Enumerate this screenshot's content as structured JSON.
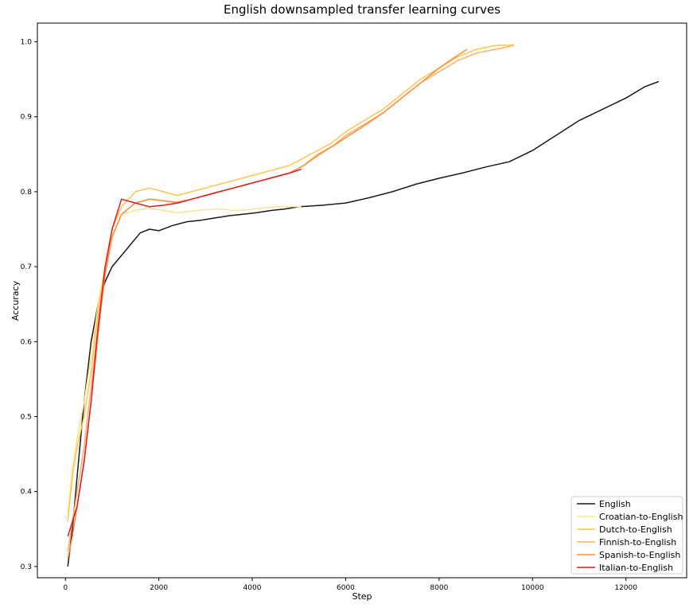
{
  "chart_data": {
    "type": "line",
    "title": "English downsampled transfer learning curves",
    "xlabel": "Step",
    "ylabel": "Accuracy",
    "xlim": [
      -600,
      13300
    ],
    "ylim": [
      0.285,
      1.025
    ],
    "xticks": [
      0,
      2000,
      4000,
      6000,
      8000,
      10000,
      12000
    ],
    "yticks": [
      0.3,
      0.4,
      0.5,
      0.6,
      0.7,
      0.8,
      0.9,
      1.0
    ],
    "xtick_labels": [
      "0",
      "2000",
      "4000",
      "6000",
      "8000",
      "10000",
      "12000"
    ],
    "ytick_labels": [
      "0.3",
      "0.4",
      "0.5",
      "0.6",
      "0.7",
      "0.8",
      "0.9",
      "1.0"
    ],
    "grid": false,
    "legend_position": "lower-right",
    "series": [
      {
        "name": "English",
        "color": "#1a1a1a",
        "x": [
          50,
          150,
          250,
          400,
          550,
          700,
          850,
          1000,
          1200,
          1400,
          1600,
          1800,
          2000,
          2300,
          2600,
          2900,
          3200,
          3500,
          3800,
          4100,
          4400,
          4700,
          5000,
          5500,
          6000,
          6500,
          7000,
          7500,
          8000,
          8500,
          9000,
          9500,
          10000,
          10500,
          11000,
          11500,
          12000,
          12400,
          12700
        ],
        "y": [
          0.3,
          0.35,
          0.42,
          0.52,
          0.6,
          0.65,
          0.68,
          0.7,
          0.715,
          0.73,
          0.745,
          0.75,
          0.748,
          0.755,
          0.76,
          0.762,
          0.765,
          0.768,
          0.77,
          0.772,
          0.775,
          0.777,
          0.78,
          0.782,
          0.785,
          0.792,
          0.8,
          0.81,
          0.818,
          0.825,
          0.833,
          0.84,
          0.855,
          0.875,
          0.895,
          0.91,
          0.925,
          0.94,
          0.947
        ]
      },
      {
        "name": "Croatian-to-English",
        "color": "#fee391",
        "x": [
          50,
          150,
          250,
          400,
          550,
          700,
          850,
          1000,
          1200,
          1500,
          1800,
          2100,
          2400,
          2700,
          3000,
          3300,
          3600,
          3900,
          4200,
          4500,
          4800,
          5050
        ],
        "y": [
          0.37,
          0.43,
          0.47,
          0.52,
          0.58,
          0.65,
          0.7,
          0.74,
          0.77,
          0.775,
          0.778,
          0.775,
          0.772,
          0.774,
          0.776,
          0.777,
          0.775,
          0.776,
          0.778,
          0.78,
          0.78,
          0.78
        ]
      },
      {
        "name": "Dutch-to-English",
        "color": "#fec44f",
        "x": [
          50,
          150,
          250,
          400,
          550,
          700,
          850,
          1000,
          1200,
          1500,
          1800,
          2100,
          2400,
          2700,
          3000,
          3300,
          3600,
          3900,
          4200,
          4500,
          4800,
          5100,
          5400,
          5700,
          6000,
          6400,
          6800,
          7200,
          7600,
          8000,
          8400,
          8800,
          9200,
          9600
        ],
        "y": [
          0.36,
          0.42,
          0.46,
          0.5,
          0.56,
          0.64,
          0.7,
          0.75,
          0.78,
          0.8,
          0.805,
          0.8,
          0.795,
          0.8,
          0.805,
          0.81,
          0.815,
          0.82,
          0.825,
          0.83,
          0.835,
          0.845,
          0.855,
          0.865,
          0.88,
          0.895,
          0.91,
          0.93,
          0.95,
          0.965,
          0.98,
          0.99,
          0.995,
          0.996
        ]
      },
      {
        "name": "Finnish-to-English",
        "color": "#fdae6b",
        "x": [
          50,
          150,
          250,
          400,
          550,
          700,
          850,
          1000,
          1200,
          1500,
          1800,
          2100,
          2400,
          2700,
          3000,
          3300,
          3600,
          3900,
          4200,
          4500,
          4800,
          5100,
          5400,
          5700,
          6000,
          6400,
          6800,
          7200,
          7600,
          8000,
          8400,
          8800,
          9200,
          9600
        ],
        "y": [
          0.32,
          0.36,
          0.4,
          0.46,
          0.54,
          0.62,
          0.69,
          0.74,
          0.77,
          0.785,
          0.79,
          0.788,
          0.785,
          0.79,
          0.795,
          0.8,
          0.805,
          0.81,
          0.815,
          0.82,
          0.825,
          0.835,
          0.85,
          0.86,
          0.875,
          0.89,
          0.905,
          0.925,
          0.945,
          0.96,
          0.975,
          0.985,
          0.99,
          0.995
        ]
      },
      {
        "name": "Spanish-to-English",
        "color": "#fd8d3c",
        "x": [
          50,
          150,
          250,
          400,
          550,
          700,
          850,
          1000,
          1200,
          1500,
          1800,
          2100,
          2400,
          2700,
          3000,
          3300,
          3600,
          3900,
          4200,
          4500,
          4800,
          5100,
          5400,
          5700,
          6000,
          6400,
          6800,
          7200,
          7600,
          8000,
          8300,
          8600
        ],
        "y": [
          0.31,
          0.34,
          0.38,
          0.44,
          0.52,
          0.61,
          0.69,
          0.74,
          0.77,
          0.785,
          0.79,
          0.788,
          0.786,
          0.79,
          0.795,
          0.8,
          0.805,
          0.81,
          0.815,
          0.82,
          0.825,
          0.835,
          0.848,
          0.86,
          0.872,
          0.888,
          0.905,
          0.925,
          0.945,
          0.965,
          0.978,
          0.99
        ]
      },
      {
        "name": "Italian-to-English",
        "color": "#e31a1c",
        "x": [
          50,
          150,
          250,
          400,
          550,
          700,
          850,
          1000,
          1200,
          1500,
          1800,
          2100,
          2400,
          2700,
          3000,
          3300,
          3600,
          3900,
          4200,
          4500,
          4800,
          5050
        ],
        "y": [
          0.34,
          0.36,
          0.38,
          0.44,
          0.52,
          0.62,
          0.7,
          0.75,
          0.79,
          0.785,
          0.78,
          0.782,
          0.785,
          0.79,
          0.795,
          0.8,
          0.805,
          0.81,
          0.815,
          0.82,
          0.825,
          0.83
        ]
      }
    ]
  }
}
